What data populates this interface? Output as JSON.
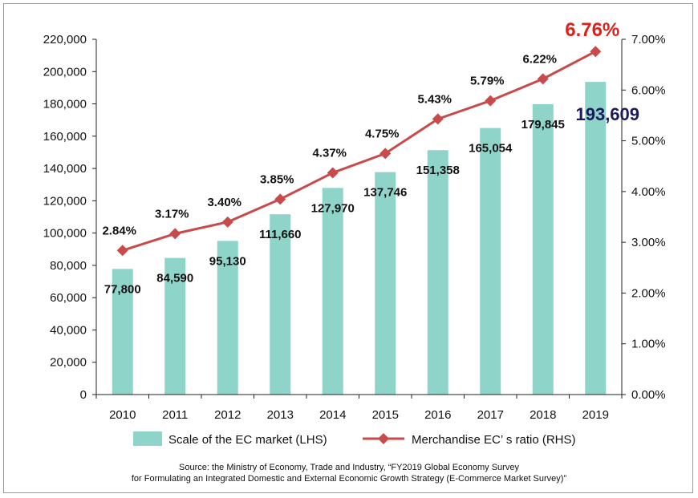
{
  "chart_data": {
    "type": "bar+line",
    "categories": [
      "2010",
      "2011",
      "2012",
      "2013",
      "2014",
      "2015",
      "2016",
      "2017",
      "2018",
      "2019"
    ],
    "series": [
      {
        "name": "Scale of the EC market (LHS)",
        "type": "bar",
        "axis": "left",
        "color": "#8fd4c9",
        "values": [
          77800,
          84590,
          95130,
          111660,
          127970,
          137746,
          151358,
          165054,
          179845,
          193609
        ],
        "labels": [
          "77,800",
          "84,590",
          "95,130",
          "111,660",
          "127,970",
          "137,746",
          "151,358",
          "165,054",
          "179,845",
          "193,609"
        ]
      },
      {
        "name": "Merchandise EC’ s ratio (RHS)",
        "type": "line",
        "axis": "right",
        "color": "#c94a4a",
        "values": [
          2.84,
          3.17,
          3.4,
          3.85,
          4.37,
          4.75,
          5.43,
          5.79,
          6.22,
          6.76
        ],
        "labels": [
          "2.84%",
          "3.17%",
          "3.40%",
          "3.85%",
          "4.37%",
          "4.75%",
          "5.43%",
          "5.79%",
          "6.22%",
          "6.76%"
        ]
      }
    ],
    "left_axis": {
      "range": [
        0,
        220000
      ],
      "ticks": [
        "0",
        "20,000",
        "40,000",
        "60,000",
        "80,000",
        "100,000",
        "120,000",
        "140,000",
        "160,000",
        "180,000",
        "200,000",
        "220,000"
      ]
    },
    "right_axis": {
      "range": [
        0,
        7
      ],
      "ticks": [
        "0.00%",
        "1.00%",
        "2.00%",
        "3.00%",
        "4.00%",
        "5.00%",
        "6.00%",
        "7.00%"
      ]
    },
    "highlight": {
      "bar_label_color": "#1a1a5e",
      "line_label_color": "#e0201c"
    },
    "grid": false,
    "legend_position": "bottom"
  },
  "source_note": {
    "line1": "Source: the Ministry of Economy, Trade and Industry, “FY2019 Global Economy Survey",
    "line2": "for Formulating an Integrated Domestic and External Economic Growth Strategy (E-Commerce Market Survey)”"
  }
}
